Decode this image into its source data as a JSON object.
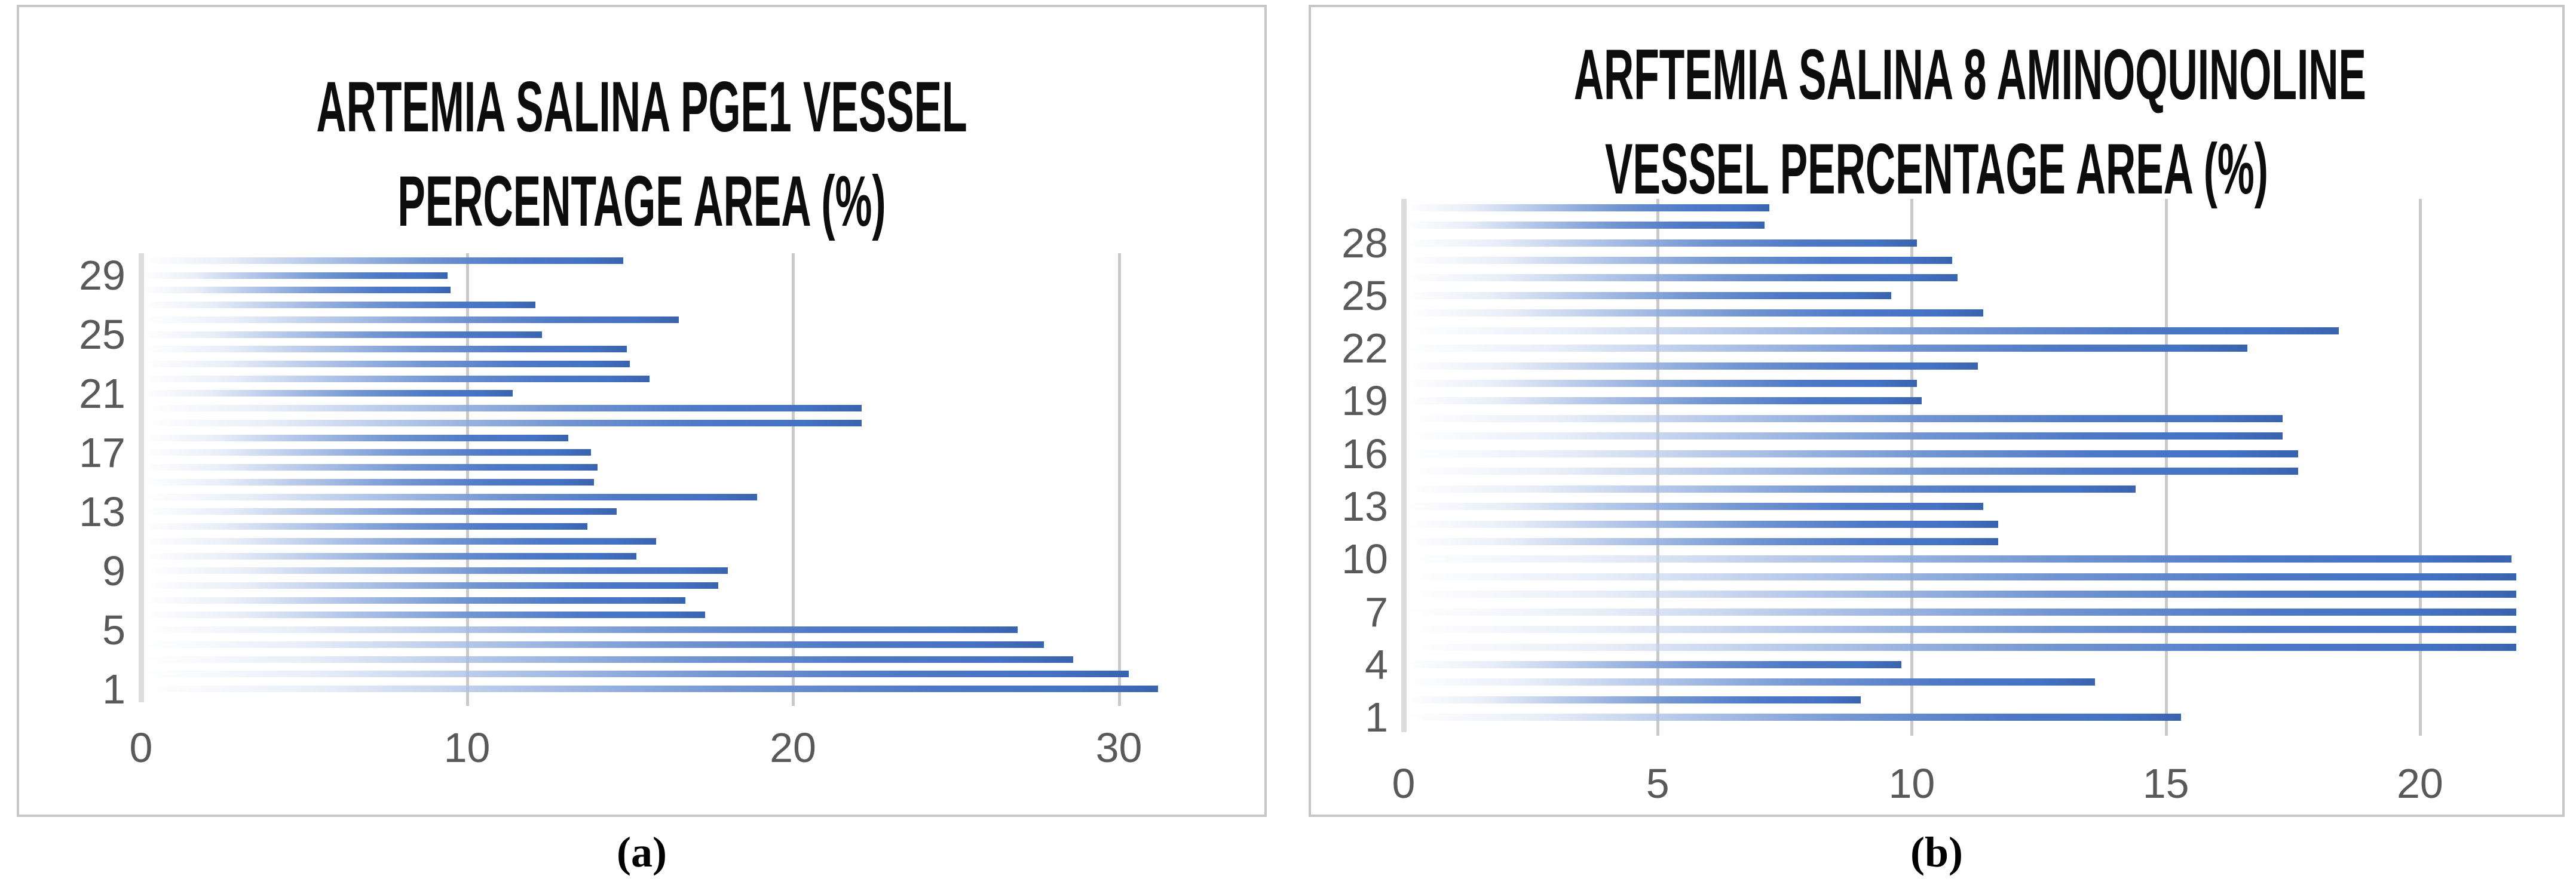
{
  "figure": {
    "captions": [
      "(a)",
      "(b)"
    ]
  },
  "colors": {
    "bar_main": "#4472c4",
    "bar_tip": "#3a63ae",
    "gridline": "#c9c9c9",
    "axis_line": "#dcdcdc",
    "tick_text": "#595959",
    "title_text": "#0d0d0d",
    "panel_border": "#c6c6c6",
    "caption_text": "#000000"
  },
  "chart_data": [
    {
      "type": "bar",
      "orientation": "horizontal",
      "title": "ARTEMIA SALINA PGE1 VESSEL PERCENTAGE AREA (%)",
      "title_lines": [
        "ARTEMIA SALINA PGE1 VESSEL",
        "PERCENTAGE AREA (%)"
      ],
      "xlabel": "",
      "ylabel": "",
      "xlim": [
        0,
        34.5
      ],
      "grid": true,
      "legend": "none",
      "categories": [
        1,
        2,
        3,
        4,
        5,
        6,
        7,
        8,
        9,
        10,
        11,
        12,
        13,
        14,
        15,
        16,
        17,
        18,
        19,
        20,
        21,
        22,
        23,
        24,
        25,
        26,
        27,
        28,
        29,
        30
      ],
      "values": [
        31.2,
        30.3,
        28.6,
        27.7,
        26.9,
        17.3,
        16.7,
        17.7,
        18.0,
        15.2,
        15.8,
        13.7,
        14.6,
        18.9,
        13.9,
        14.0,
        13.8,
        13.1,
        22.1,
        22.1,
        11.4,
        15.6,
        15.0,
        14.9,
        12.3,
        16.5,
        12.1,
        9.5,
        9.4,
        14.8
      ],
      "x_tick_values": [
        0,
        10,
        20,
        30
      ],
      "x_tick_labels": [
        "0",
        "10",
        "20",
        "30"
      ],
      "y_tick_values": [
        1,
        5,
        9,
        13,
        17,
        21,
        25,
        29
      ],
      "y_tick_labels": [
        "1",
        "5",
        "9",
        "13",
        "17",
        "21",
        "25",
        "29"
      ]
    },
    {
      "type": "bar",
      "orientation": "horizontal",
      "title": "ARFTEMIA SALINA 8 AMINOQUINOLINE VESSEL PERCENTAGE AREA (%)",
      "title_lines": [
        "ARFTEMIA SALINA 8 AMINOQUINOLINE",
        "VESSEL PERCENTAGE AREA (%)"
      ],
      "xlabel": "",
      "ylabel": "",
      "xlim": [
        0,
        22.8
      ],
      "grid": true,
      "legend": "none",
      "categories": [
        1,
        2,
        3,
        4,
        5,
        6,
        7,
        8,
        9,
        10,
        11,
        12,
        13,
        14,
        15,
        16,
        17,
        18,
        19,
        20,
        21,
        22,
        23,
        24,
        25,
        26,
        27,
        28,
        29,
        30
      ],
      "values": [
        15.3,
        9.0,
        13.6,
        9.8,
        21.9,
        21.9,
        21.9,
        21.9,
        21.9,
        21.8,
        11.7,
        11.7,
        11.4,
        14.4,
        17.6,
        17.6,
        17.3,
        17.3,
        10.2,
        10.1,
        11.3,
        16.6,
        18.4,
        11.4,
        9.6,
        10.9,
        10.8,
        10.1,
        7.1,
        7.2
      ],
      "x_tick_values": [
        0,
        5,
        10,
        15,
        20
      ],
      "x_tick_labels": [
        "0",
        "5",
        "10",
        "15",
        "20"
      ],
      "y_tick_values": [
        1,
        4,
        7,
        10,
        13,
        16,
        19,
        22,
        25,
        28
      ],
      "y_tick_labels": [
        "1",
        "4",
        "7",
        "10",
        "13",
        "16",
        "19",
        "22",
        "25",
        "28"
      ]
    }
  ]
}
